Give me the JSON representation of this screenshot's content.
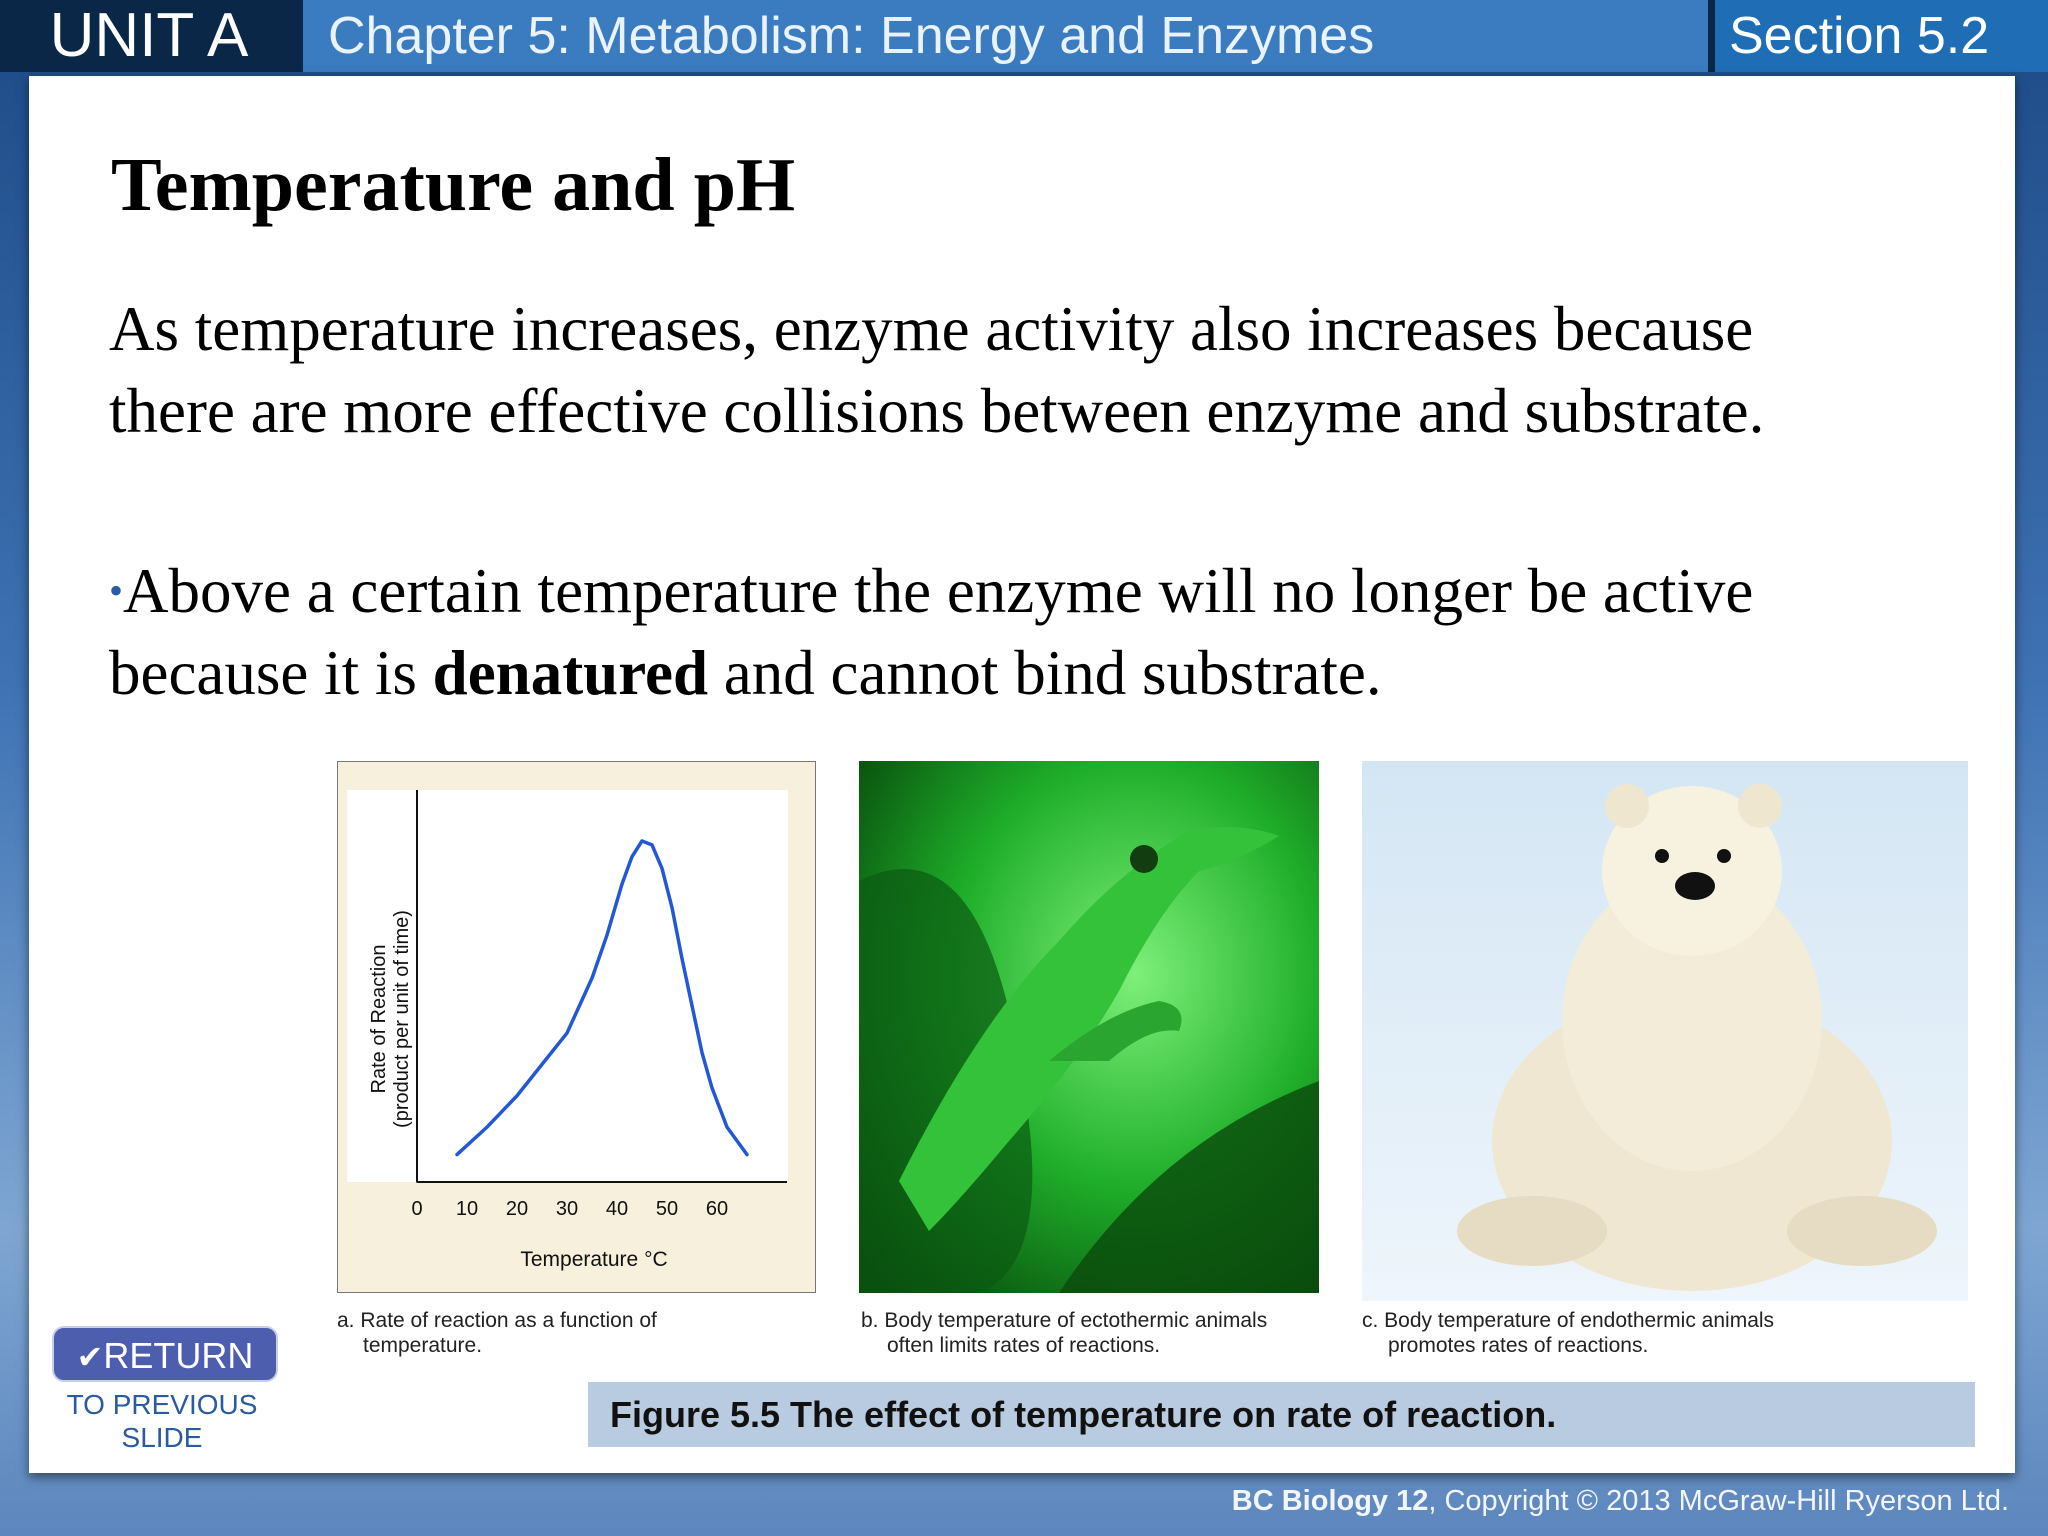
{
  "header": {
    "unit": "UNIT A",
    "chapter": "Chapter 5: Metabolism: Energy and Enzymes",
    "section": "Section 5.2"
  },
  "title": "Temperature and pH",
  "body": {
    "paragraph": "As temperature increases, enzyme activity also increases because there are more effective collisions between enzyme and substrate.",
    "bullet": {
      "marker": "•",
      "before": "Above a certain temperature the enzyme will no longer be active because it is ",
      "bold": "denatured",
      "after": " and cannot bind substrate."
    }
  },
  "chart_data": {
    "type": "line",
    "x_label": "Temperature °C",
    "y_label": [
      "Rate of Reaction",
      "(product per unit of time)"
    ],
    "x": [
      8,
      14,
      20,
      25,
      30,
      35,
      38,
      41,
      43,
      45,
      47,
      49,
      51,
      53,
      55,
      57,
      59,
      62,
      66
    ],
    "values": [
      7,
      14,
      22,
      30,
      38,
      52,
      63,
      76,
      83,
      87,
      86,
      80,
      70,
      57,
      45,
      33,
      24,
      14,
      7
    ],
    "color": "#2257d6",
    "xlim": [
      0,
      74
    ],
    "xticks": [
      0,
      10,
      20,
      30,
      40,
      50,
      60
    ],
    "ylim": [
      0,
      100
    ]
  },
  "figure": {
    "captions": [
      [
        "a. Rate of reaction as a function of",
        "temperature."
      ],
      [
        "b. Body temperature of ectothermic animals",
        "often limits rates of reactions."
      ],
      [
        "c. Body temperature of endothermic animals",
        "promotes rates of reactions."
      ]
    ],
    "label": "Figure 5.5  The effect of temperature on rate of reaction."
  },
  "return_button": {
    "label": "RETURN",
    "caption": [
      "TO PREVIOUS",
      "SLIDE"
    ]
  },
  "footer": {
    "book": "BC Biology 12",
    "copyright": ", Copyright © 2013 McGraw-Hill Ryerson Ltd."
  }
}
